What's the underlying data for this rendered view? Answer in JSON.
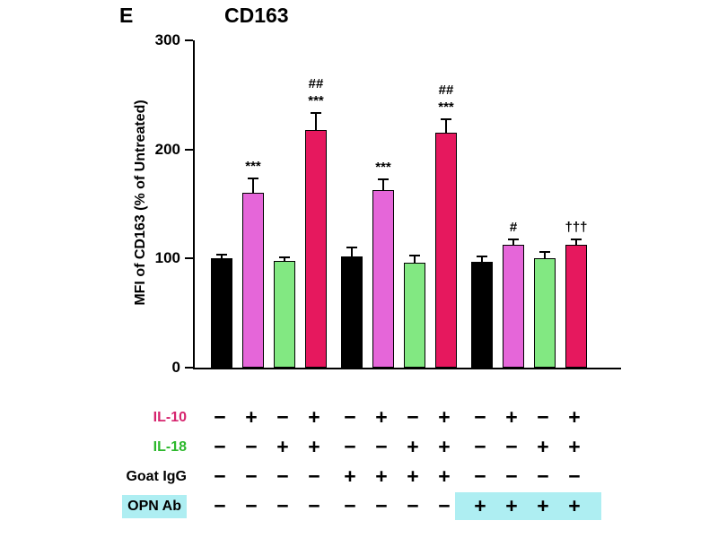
{
  "panel_label": "E",
  "chart_data": {
    "type": "bar",
    "title": "CD163",
    "ylabel": "MFI of CD163 (% of Untreated)",
    "ylim": [
      0,
      300
    ],
    "yticks": [
      0,
      100,
      200,
      300
    ],
    "bar_colors": {
      "black": "#000000",
      "magenta": "#e566d9",
      "green": "#82e882",
      "crimson": "#e6185e"
    },
    "bars": [
      {
        "value": 100,
        "error": 3,
        "color": "black",
        "annotations": []
      },
      {
        "value": 160,
        "error": 13,
        "color": "magenta",
        "annotations": [
          "***"
        ]
      },
      {
        "value": 98,
        "error": 2,
        "color": "green",
        "annotations": []
      },
      {
        "value": 218,
        "error": 15,
        "color": "crimson",
        "annotations": [
          "##",
          "***"
        ]
      },
      {
        "value": 102,
        "error": 7,
        "color": "black",
        "annotations": []
      },
      {
        "value": 163,
        "error": 9,
        "color": "magenta",
        "annotations": [
          "***"
        ]
      },
      {
        "value": 96,
        "error": 6,
        "color": "green",
        "annotations": []
      },
      {
        "value": 215,
        "error": 12,
        "color": "crimson",
        "annotations": [
          "##",
          "***"
        ]
      },
      {
        "value": 97,
        "error": 4,
        "color": "black",
        "annotations": []
      },
      {
        "value": 113,
        "error": 4,
        "color": "magenta",
        "annotations": [
          "#"
        ]
      },
      {
        "value": 100,
        "error": 5,
        "color": "green",
        "annotations": []
      },
      {
        "value": 113,
        "error": 4,
        "color": "crimson",
        "annotations": [
          "†††"
        ]
      }
    ],
    "treatment_rows": [
      {
        "label": "IL-10",
        "label_color": "#d6246e",
        "highlight": false,
        "symbols": [
          "−",
          "+",
          "−",
          "+",
          "−",
          "+",
          "−",
          "+",
          "−",
          "+",
          "−",
          "+"
        ]
      },
      {
        "label": "IL-18",
        "label_color": "#2db82d",
        "highlight": false,
        "symbols": [
          "−",
          "−",
          "+",
          "+",
          "−",
          "−",
          "+",
          "+",
          "−",
          "−",
          "+",
          "+"
        ]
      },
      {
        "label": "Goat IgG",
        "label_color": "#000000",
        "highlight": false,
        "symbols": [
          "−",
          "−",
          "−",
          "−",
          "+",
          "+",
          "+",
          "+",
          "−",
          "−",
          "−",
          "−"
        ]
      },
      {
        "label": "OPN Ab",
        "label_color": "#000000",
        "highlight": true,
        "highlight_from": 8,
        "highlight_color": "#aeeef2",
        "symbols": [
          "−",
          "−",
          "−",
          "−",
          "−",
          "−",
          "−",
          "−",
          "+",
          "+",
          "+",
          "+"
        ]
      }
    ]
  }
}
